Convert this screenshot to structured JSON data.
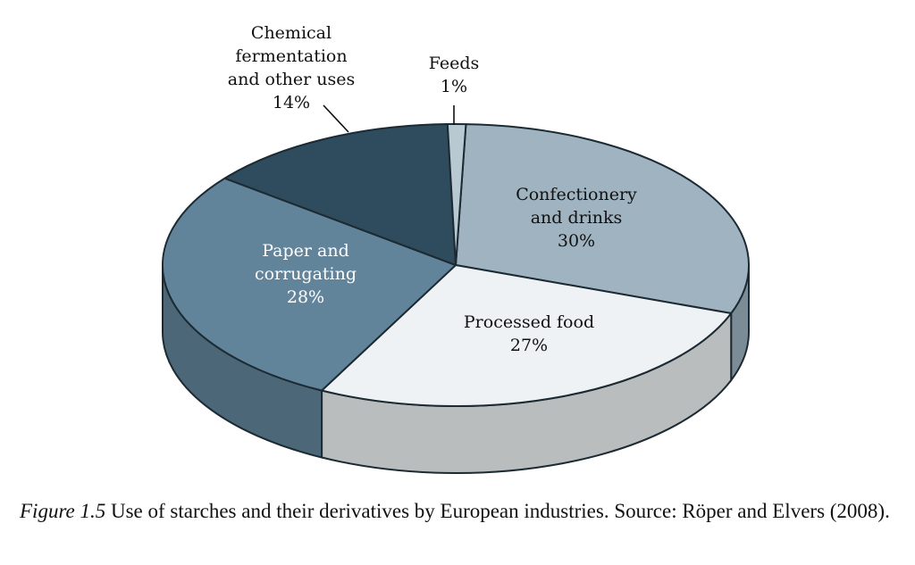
{
  "chart_data": {
    "type": "pie",
    "style": "3d",
    "slices": [
      {
        "label": [
          "Confectionery",
          "and drinks"
        ],
        "value": 30,
        "value_text": "30%",
        "color": "#9fb3c0"
      },
      {
        "label": [
          "Processed food"
        ],
        "value": 27,
        "value_text": "27%",
        "color": "#eef2f4"
      },
      {
        "label": [
          "Paper and",
          "corrugating"
        ],
        "value": 28,
        "value_text": "28%",
        "color": "#61849a"
      },
      {
        "label": [
          "Chemical",
          "fermentation",
          "and other uses"
        ],
        "value": 14,
        "value_text": "14%",
        "color": "#2f4b5e"
      },
      {
        "label": [
          "Feeds"
        ],
        "value": 1,
        "value_text": "1%",
        "color": "#b9c9d2"
      }
    ]
  },
  "caption": {
    "label": "Figure 1.5",
    "text": " Use of starches and their derivatives by European industries. Source: Röper and Elvers (2008)."
  }
}
